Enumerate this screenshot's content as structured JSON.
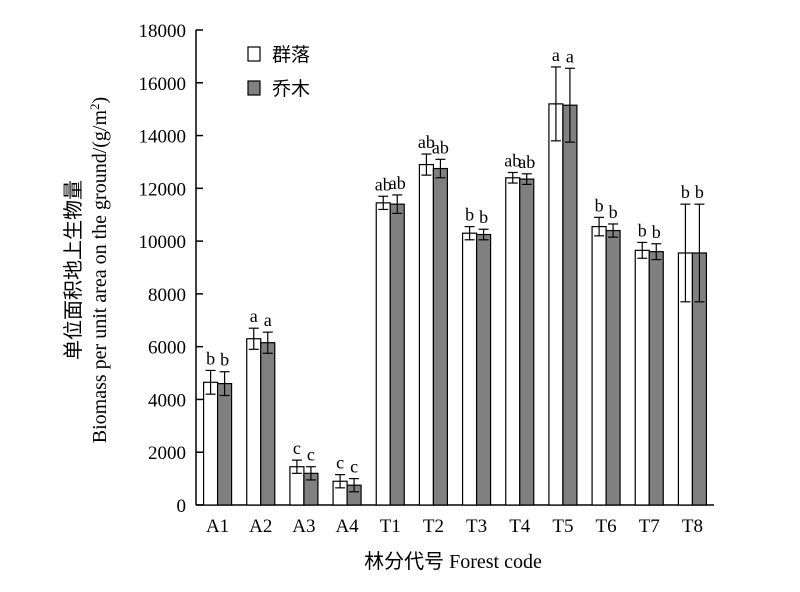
{
  "chart_data": {
    "type": "bar",
    "title": "",
    "xlabel": "林分代号 Forest code",
    "ylabel_cn": "单位面积地上生物量",
    "ylabel_en_pre": "Biomass per unit area on the ground/(g/m",
    "ylabel_en_sup": "2",
    "ylabel_en_post": ")",
    "ylim": [
      0,
      18000
    ],
    "yticks": [
      0,
      2000,
      4000,
      6000,
      8000,
      10000,
      12000,
      14000,
      16000,
      18000
    ],
    "legend_position": "top-left",
    "categories": [
      "A1",
      "A2",
      "A3",
      "A4",
      "T1",
      "T2",
      "T3",
      "T4",
      "T5",
      "T6",
      "T7",
      "T8"
    ],
    "series": [
      {
        "name": "群落",
        "color": "#ffffff",
        "values": [
          4650,
          6300,
          1450,
          900,
          11450,
          12900,
          10300,
          12400,
          15200,
          10550,
          9650,
          9550
        ],
        "errors": [
          450,
          400,
          250,
          250,
          250,
          400,
          250,
          200,
          1400,
          350,
          300,
          1850
        ],
        "labels": [
          "b",
          "a",
          "c",
          "c",
          "ab",
          "ab",
          "b",
          "ab",
          "a",
          "b",
          "b",
          "b"
        ]
      },
      {
        "name": "乔木",
        "color": "#808080",
        "values": [
          4600,
          6150,
          1200,
          750,
          11400,
          12750,
          10250,
          12350,
          15150,
          10400,
          9600,
          9550
        ],
        "errors": [
          450,
          400,
          250,
          250,
          350,
          350,
          200,
          200,
          1400,
          250,
          300,
          1850
        ],
        "labels": [
          "b",
          "a",
          "c",
          "c",
          "ab",
          "ab",
          "b",
          "ab",
          "a",
          "b",
          "b",
          "b"
        ]
      }
    ]
  }
}
